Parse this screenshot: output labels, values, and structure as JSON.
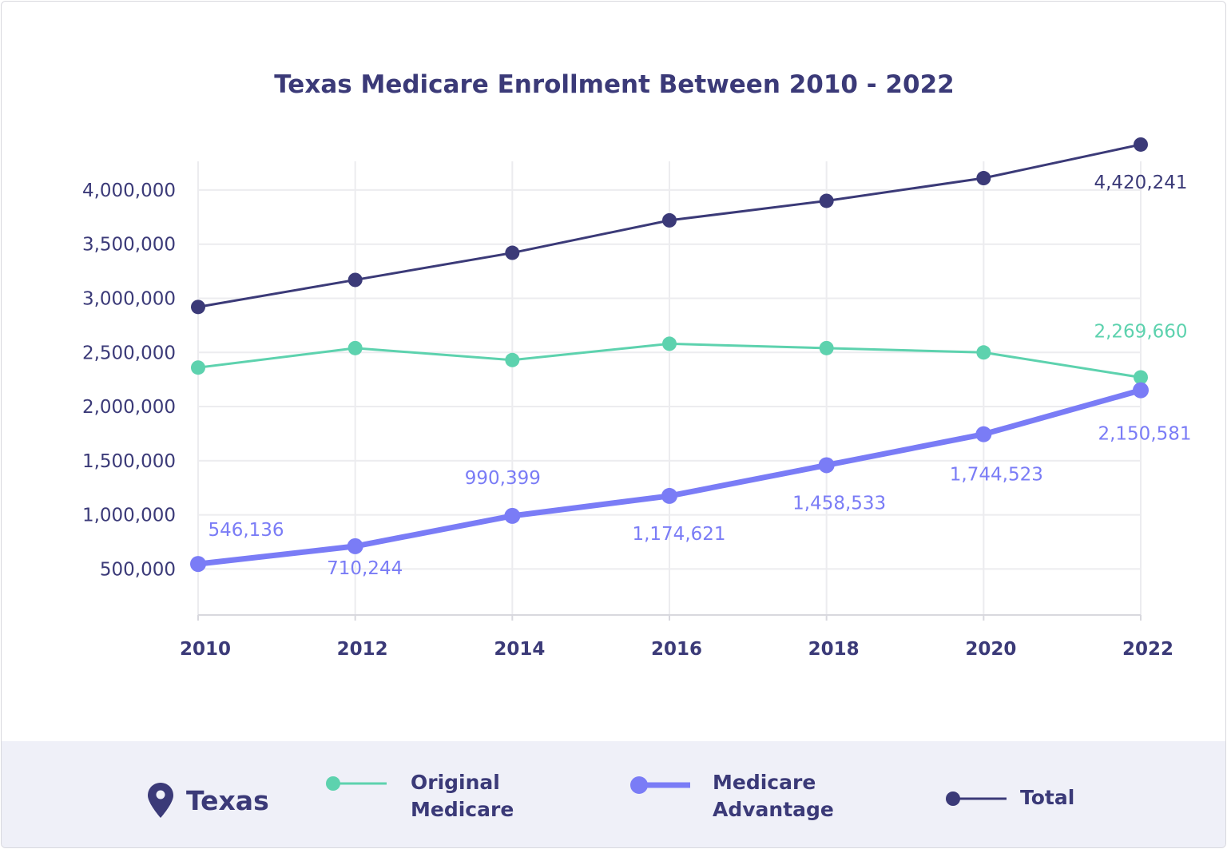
{
  "chart_data": {
    "type": "line",
    "title": "Texas Medicare Enrollment Between 2010 - 2022",
    "xlabel": "",
    "ylabel": "",
    "x": [
      2010,
      2012,
      2014,
      2016,
      2018,
      2020,
      2022
    ],
    "x_tick_labels": [
      "2010",
      "2012",
      "2014",
      "2016",
      "2018",
      "2020",
      "2022"
    ],
    "y_ticks": [
      500000,
      1000000,
      1500000,
      2000000,
      2500000,
      3000000,
      3500000,
      4000000
    ],
    "y_tick_labels": [
      "500,000",
      "1,000,000",
      "1,500,000",
      "2,000,000",
      "2,500,000",
      "3,000,000",
      "3,500,000",
      "4,000,000"
    ],
    "ylim": [
      75000,
      4265000
    ],
    "grid": true,
    "legend_placement": "bottom",
    "series": [
      {
        "name": "Original Medicare",
        "color": "#5dd2ae",
        "values": [
          2360000,
          2540000,
          2430000,
          2580000,
          2540000,
          2500000,
          2269660
        ],
        "data_labels": [
          "",
          "",
          "",
          "",
          "",
          "",
          "2,269,660"
        ]
      },
      {
        "name": "Medicare Advantage",
        "color": "#7a7cf6",
        "values": [
          546136,
          710244,
          990399,
          1174621,
          1458533,
          1744523,
          2150581
        ],
        "data_labels": [
          "546,136",
          "710,244",
          "990,399",
          "1,174,621",
          "1,458,533",
          "1,744,523",
          "2,150,581"
        ]
      },
      {
        "name": "Total",
        "color": "#3b3a78",
        "values": [
          2920000,
          3170000,
          3420000,
          3720000,
          3900000,
          4110000,
          4420241
        ],
        "data_labels": [
          "",
          "",
          "",
          "",
          "",
          "",
          "4,420,241"
        ]
      }
    ]
  },
  "legend": {
    "location": "Texas",
    "location_icon": "map-pin-icon",
    "items": [
      {
        "line1": "Original",
        "line2": "Medicare"
      },
      {
        "line1": "Medicare",
        "line2": "Advantage"
      },
      {
        "line1": "Total",
        "line2": ""
      }
    ]
  },
  "colors": {
    "navy": "#3b3a78",
    "teal": "#5dd2ae",
    "purple": "#7a7cf6",
    "legend_bg": "#eff0f8",
    "grid": "#ececef"
  }
}
